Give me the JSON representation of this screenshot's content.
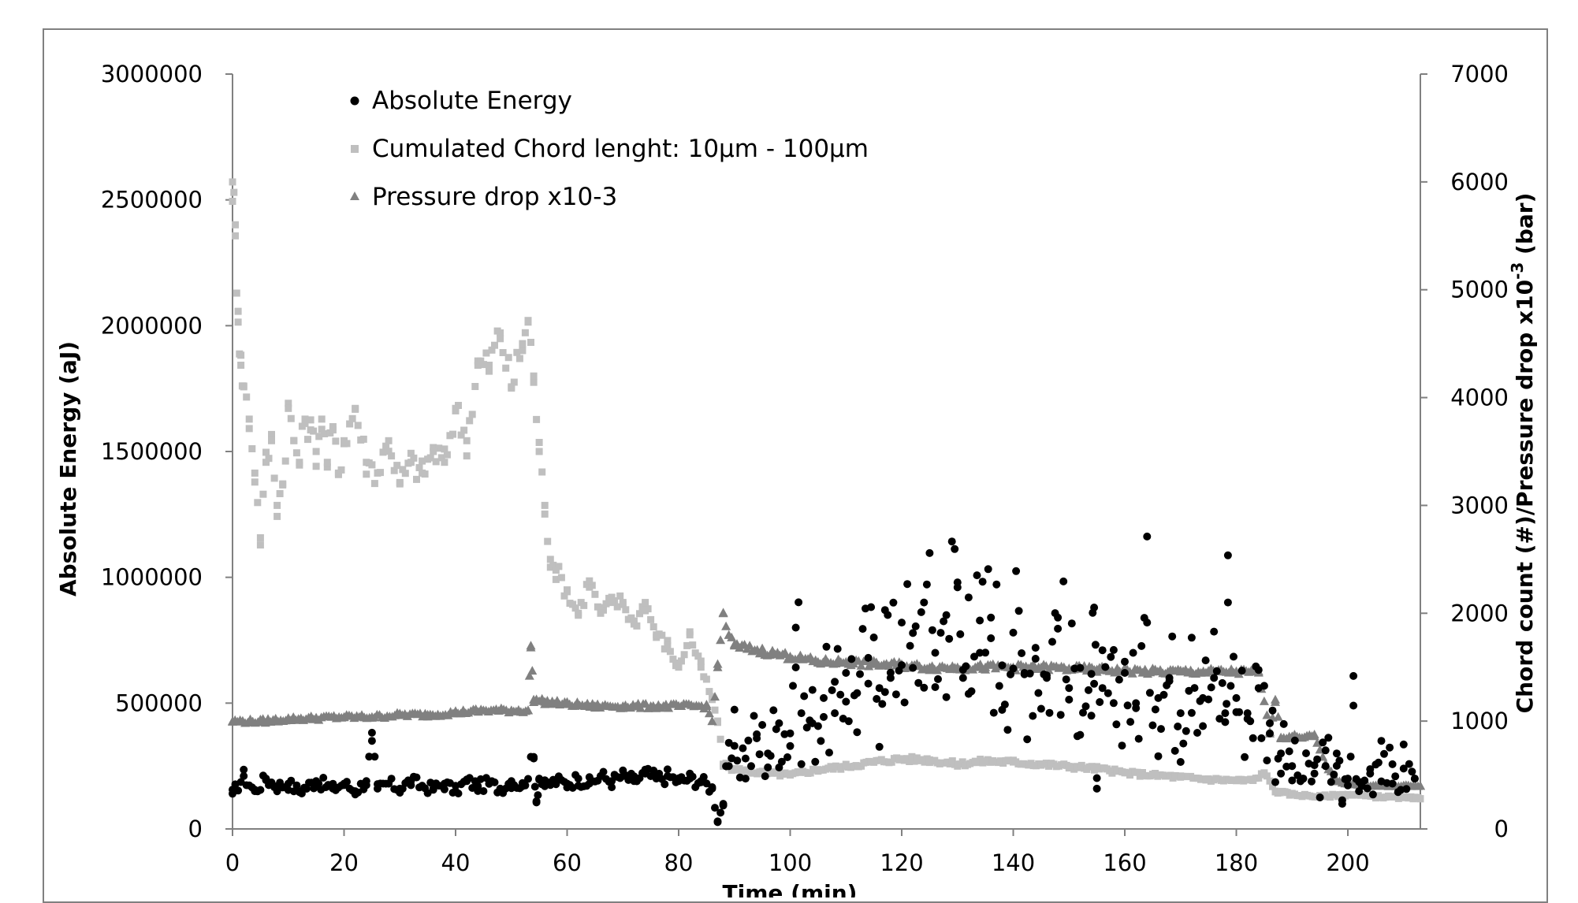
{
  "chart_data": {
    "type": "scatter",
    "title": "",
    "xlabel": "Time (min)",
    "ylabel": "Absolute Energy (aJ)",
    "y2label_main": "Chord count (#)/Pressure drop x10",
    "y2label_exp": "-3",
    "y2label_unit": " (bar)",
    "xlim": [
      0,
      213
    ],
    "ylim": [
      0,
      3000000
    ],
    "y2lim": [
      0,
      7000
    ],
    "x_ticks": [
      "0",
      "20",
      "40",
      "60",
      "80",
      "100",
      "120",
      "140",
      "160",
      "180",
      "200"
    ],
    "y_ticks": [
      "0",
      "500000",
      "1000000",
      "1500000",
      "2000000",
      "2500000",
      "3000000"
    ],
    "y2_ticks": [
      "0",
      "1000",
      "2000",
      "3000",
      "4000",
      "5000",
      "6000",
      "7000"
    ],
    "grid": false,
    "legend_position": "top-left",
    "series": [
      {
        "name": "Absolute Energy",
        "axis": "left",
        "marker": "circle",
        "color": "#000000",
        "points": [
          [
            0,
            140000
          ],
          [
            2,
            210000
          ],
          [
            4,
            150000
          ],
          [
            6,
            200000
          ],
          [
            8,
            170000
          ],
          [
            10,
            180000
          ],
          [
            12,
            150000
          ],
          [
            15,
            190000
          ],
          [
            18,
            160000
          ],
          [
            20,
            180000
          ],
          [
            22,
            150000
          ],
          [
            24,
            190000
          ],
          [
            25,
            350000
          ],
          [
            26,
            160000
          ],
          [
            28,
            180000
          ],
          [
            30,
            160000
          ],
          [
            32,
            190000
          ],
          [
            34,
            170000
          ],
          [
            36,
            160000
          ],
          [
            38,
            180000
          ],
          [
            40,
            150000
          ],
          [
            42,
            190000
          ],
          [
            44,
            170000
          ],
          [
            46,
            180000
          ],
          [
            48,
            160000
          ],
          [
            50,
            190000
          ],
          [
            52,
            170000
          ],
          [
            54,
            280000
          ],
          [
            54.5,
            110000
          ],
          [
            55,
            200000
          ],
          [
            56,
            170000
          ],
          [
            58,
            190000
          ],
          [
            60,
            180000
          ],
          [
            62,
            200000
          ],
          [
            64,
            180000
          ],
          [
            66,
            210000
          ],
          [
            68,
            190000
          ],
          [
            70,
            210000
          ],
          [
            72,
            190000
          ],
          [
            74,
            220000
          ],
          [
            76,
            200000
          ],
          [
            78,
            210000
          ],
          [
            80,
            190000
          ],
          [
            82,
            200000
          ],
          [
            84,
            190000
          ],
          [
            86,
            160000
          ],
          [
            87,
            30000
          ],
          [
            88,
            100000
          ],
          [
            89,
            250000
          ],
          [
            90,
            330000
          ],
          [
            92,
            280000
          ],
          [
            94,
            360000
          ],
          [
            96,
            300000
          ],
          [
            98,
            420000
          ],
          [
            100,
            380000
          ],
          [
            101,
            800000
          ],
          [
            102,
            460000
          ],
          [
            104,
            420000
          ],
          [
            106,
            520000
          ],
          [
            108,
            460000
          ],
          [
            110,
            620000
          ],
          [
            112,
            540000
          ],
          [
            114,
            680000
          ],
          [
            116,
            560000
          ],
          [
            117,
            870000
          ],
          [
            118,
            600000
          ],
          [
            120,
            820000
          ],
          [
            122,
            640000
          ],
          [
            124,
            900000
          ],
          [
            126,
            700000
          ],
          [
            128,
            850000
          ],
          [
            130,
            980000
          ],
          [
            131,
            600000
          ],
          [
            132,
            920000
          ],
          [
            134,
            700000
          ],
          [
            136,
            840000
          ],
          [
            138,
            650000
          ],
          [
            140,
            780000
          ],
          [
            142,
            620000
          ],
          [
            144,
            720000
          ],
          [
            146,
            600000
          ],
          [
            148,
            840000
          ],
          [
            150,
            560000
          ],
          [
            152,
            640000
          ],
          [
            154,
            450000
          ],
          [
            154.5,
            880000
          ],
          [
            155,
            160000
          ],
          [
            156,
            560000
          ],
          [
            158,
            500000
          ],
          [
            160,
            620000
          ],
          [
            162,
            480000
          ],
          [
            164,
            820000
          ],
          [
            166,
            520000
          ],
          [
            168,
            600000
          ],
          [
            170,
            460000
          ],
          [
            172,
            760000
          ],
          [
            174,
            520000
          ],
          [
            176,
            600000
          ],
          [
            178,
            460000
          ],
          [
            178.5,
            900000
          ],
          [
            180,
            520000
          ],
          [
            182,
            460000
          ],
          [
            184,
            560000
          ],
          [
            186,
            420000
          ],
          [
            188,
            300000
          ],
          [
            190,
            250000
          ],
          [
            192,
            200000
          ],
          [
            194,
            220000
          ],
          [
            196,
            250000
          ],
          [
            198,
            300000
          ],
          [
            199,
            100000
          ],
          [
            200,
            200000
          ],
          [
            201,
            490000
          ],
          [
            202,
            150000
          ],
          [
            204,
            220000
          ],
          [
            206,
            350000
          ],
          [
            208,
            180000
          ],
          [
            210,
            240000
          ],
          [
            212,
            200000
          ]
        ]
      },
      {
        "name": "Cumulated Chord lenght: 10µm - 100µm",
        "axis": "right",
        "marker": "square",
        "color": "#bfbfbf",
        "points": [
          [
            0,
            6000
          ],
          [
            0.5,
            5500
          ],
          [
            1,
            4800
          ],
          [
            1.5,
            4300
          ],
          [
            2,
            4100
          ],
          [
            3,
            3800
          ],
          [
            4,
            3300
          ],
          [
            5,
            2700
          ],
          [
            6,
            3400
          ],
          [
            7,
            3600
          ],
          [
            8,
            3000
          ],
          [
            9,
            3200
          ],
          [
            10,
            3900
          ],
          [
            11,
            3600
          ],
          [
            12,
            3400
          ],
          [
            13,
            3800
          ],
          [
            14,
            3700
          ],
          [
            15,
            3500
          ],
          [
            16,
            3800
          ],
          [
            17,
            3400
          ],
          [
            18,
            3700
          ],
          [
            19,
            3300
          ],
          [
            20,
            3600
          ],
          [
            22,
            3900
          ],
          [
            24,
            3400
          ],
          [
            26,
            3300
          ],
          [
            28,
            3600
          ],
          [
            30,
            3200
          ],
          [
            32,
            3400
          ],
          [
            34,
            3300
          ],
          [
            36,
            3500
          ],
          [
            38,
            3400
          ],
          [
            40,
            3900
          ],
          [
            42,
            3600
          ],
          [
            44,
            4300
          ],
          [
            46,
            4300
          ],
          [
            48,
            4600
          ],
          [
            50,
            4100
          ],
          [
            52,
            4500
          ],
          [
            53,
            4700
          ],
          [
            54,
            4200
          ],
          [
            55,
            3500
          ],
          [
            56,
            3000
          ],
          [
            57,
            2500
          ],
          [
            58,
            2400
          ],
          [
            60,
            2200
          ],
          [
            62,
            2000
          ],
          [
            64,
            2300
          ],
          [
            66,
            2000
          ],
          [
            68,
            2100
          ],
          [
            70,
            2100
          ],
          [
            72,
            1900
          ],
          [
            74,
            2100
          ],
          [
            76,
            1800
          ],
          [
            78,
            1700
          ],
          [
            80,
            1500
          ],
          [
            82,
            1800
          ],
          [
            84,
            1500
          ],
          [
            86,
            1200
          ],
          [
            87,
            1000
          ],
          [
            88,
            600
          ],
          [
            90,
            550
          ],
          [
            95,
            520
          ],
          [
            100,
            500
          ],
          [
            105,
            550
          ],
          [
            110,
            580
          ],
          [
            115,
            620
          ],
          [
            120,
            650
          ],
          [
            125,
            640
          ],
          [
            130,
            600
          ],
          [
            135,
            630
          ],
          [
            140,
            620
          ],
          [
            145,
            600
          ],
          [
            150,
            580
          ],
          [
            155,
            560
          ],
          [
            160,
            520
          ],
          [
            165,
            500
          ],
          [
            170,
            480
          ],
          [
            175,
            460
          ],
          [
            180,
            450
          ],
          [
            183,
            450
          ],
          [
            185,
            520
          ],
          [
            187,
            350
          ],
          [
            190,
            320
          ],
          [
            195,
            300
          ],
          [
            200,
            320
          ],
          [
            205,
            300
          ],
          [
            210,
            290
          ],
          [
            213,
            280
          ]
        ]
      },
      {
        "name": "Pressure drop x10-3",
        "axis": "right",
        "marker": "triangle",
        "color": "#808080",
        "points": [
          [
            0,
            1000
          ],
          [
            5,
            1000
          ],
          [
            10,
            1020
          ],
          [
            15,
            1030
          ],
          [
            20,
            1040
          ],
          [
            25,
            1040
          ],
          [
            30,
            1060
          ],
          [
            35,
            1060
          ],
          [
            40,
            1080
          ],
          [
            45,
            1100
          ],
          [
            50,
            1100
          ],
          [
            53,
            1100
          ],
          [
            53.5,
            1700
          ],
          [
            54,
            1200
          ],
          [
            56,
            1180
          ],
          [
            60,
            1160
          ],
          [
            65,
            1140
          ],
          [
            70,
            1140
          ],
          [
            75,
            1140
          ],
          [
            80,
            1140
          ],
          [
            85,
            1140
          ],
          [
            86,
            1000
          ],
          [
            87,
            1500
          ],
          [
            88,
            2000
          ],
          [
            89,
            1800
          ],
          [
            90,
            1700
          ],
          [
            95,
            1650
          ],
          [
            100,
            1600
          ],
          [
            105,
            1550
          ],
          [
            110,
            1550
          ],
          [
            115,
            1530
          ],
          [
            120,
            1520
          ],
          [
            125,
            1500
          ],
          [
            130,
            1500
          ],
          [
            135,
            1500
          ],
          [
            140,
            1500
          ],
          [
            145,
            1500
          ],
          [
            150,
            1490
          ],
          [
            155,
            1480
          ],
          [
            160,
            1470
          ],
          [
            165,
            1460
          ],
          [
            170,
            1460
          ],
          [
            175,
            1460
          ],
          [
            180,
            1460
          ],
          [
            184,
            1450
          ],
          [
            186,
            900
          ],
          [
            187,
            1200
          ],
          [
            188,
            850
          ],
          [
            190,
            860
          ],
          [
            194,
            860
          ],
          [
            196,
            600
          ],
          [
            198,
            450
          ],
          [
            200,
            420
          ],
          [
            205,
            400
          ],
          [
            210,
            400
          ],
          [
            213,
            400
          ]
        ]
      }
    ]
  }
}
